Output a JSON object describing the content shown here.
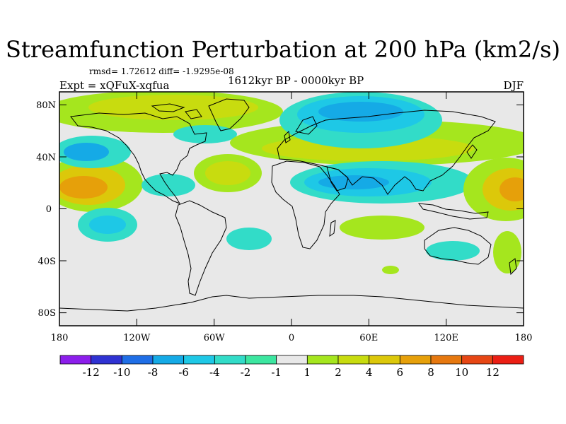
{
  "header": {
    "title": "Streamfunction Perturbation at 200 hPa (km2/s)",
    "stats": "rmsd= 1.72612 diff= -1.9295e-08",
    "experiment": "Expt = xQFuX-xqfua",
    "period": "1612kyr BP - 0000kyr BP",
    "season": "DJF"
  },
  "map": {
    "projection": "cylindrical equidistant",
    "lon_range": [
      -180,
      180
    ],
    "lat_range": [
      -90,
      90
    ],
    "lat_ticks": [
      {
        "label": "80N",
        "lat": 80
      },
      {
        "label": "40N",
        "lat": 40
      },
      {
        "label": "0",
        "lat": 0
      },
      {
        "label": "40S",
        "lat": -40
      },
      {
        "label": "80S",
        "lat": -80
      }
    ],
    "lon_ticks": [
      {
        "label": "180",
        "lon": -180
      },
      {
        "label": "120W",
        "lon": -120
      },
      {
        "label": "60W",
        "lon": -60
      },
      {
        "label": "0",
        "lon": 0
      },
      {
        "label": "60E",
        "lon": 60
      },
      {
        "label": "120E",
        "lon": 120
      },
      {
        "label": "180",
        "lon": 180
      }
    ]
  },
  "colorbar": {
    "colors": [
      "#8c1eeb",
      "#2f32d2",
      "#1f6ee6",
      "#15aae6",
      "#1ec8e6",
      "#32dcc8",
      "#3ce6a0",
      "#e8e8e8",
      "#a5e61e",
      "#c8dc0f",
      "#dcc80a",
      "#e6a00a",
      "#e6780f",
      "#e64614",
      "#eb1e14"
    ],
    "labels": [
      "-12",
      "-10",
      "-8",
      "-6",
      "-4",
      "-2",
      "-1",
      "1",
      "2",
      "4",
      "6",
      "8",
      "10",
      "12"
    ]
  },
  "chart_data": {
    "type": "heatmap",
    "title": "Streamfunction Perturbation at 200 hPa (km2/s)",
    "variable": "streamfunction perturbation at 200 hPa",
    "units": "km2/s",
    "levels": [
      -12,
      -10,
      -8,
      -6,
      -4,
      -2,
      -1,
      1,
      2,
      4,
      6,
      8,
      10,
      12
    ],
    "features": [
      {
        "name": "NE Pacific positive",
        "lon": -155,
        "lat": 20,
        "value": 7
      },
      {
        "name": "N Pacific negative",
        "lon": -150,
        "lat": 45,
        "value": -4
      },
      {
        "name": "N America/Arctic positive",
        "lon": -85,
        "lat": 78,
        "value": 4
      },
      {
        "name": "N Atlantic positive",
        "lon": -45,
        "lat": 30,
        "value": 5
      },
      {
        "name": "Caribbean negative",
        "lon": -75,
        "lat": 18,
        "value": -2
      },
      {
        "name": "Greenland negative",
        "lon": -50,
        "lat": 65,
        "value": -2
      },
      {
        "name": "Eurasia/Arctic negative",
        "lon": 45,
        "lat": 72,
        "value": -5
      },
      {
        "name": "Eurasia positive band",
        "lon": 90,
        "lat": 45,
        "value": 3
      },
      {
        "name": "Africa/Asia subtropical negative",
        "lon": 60,
        "lat": 15,
        "value": -4
      },
      {
        "name": "W Pacific positive",
        "lon": 170,
        "lat": 15,
        "value": 7
      },
      {
        "name": "S Pacific negative",
        "lon": -150,
        "lat": -15,
        "value": -4
      },
      {
        "name": "S Atlantic negative",
        "lon": -30,
        "lat": -20,
        "value": -2
      },
      {
        "name": "Indian Ocean positive",
        "lon": 50,
        "lat": -15,
        "value": 2
      },
      {
        "name": "SW Pacific positive",
        "lon": 165,
        "lat": -25,
        "value": 2
      },
      {
        "name": "Australia negative",
        "lon": 110,
        "lat": -30,
        "value": -2
      }
    ]
  }
}
